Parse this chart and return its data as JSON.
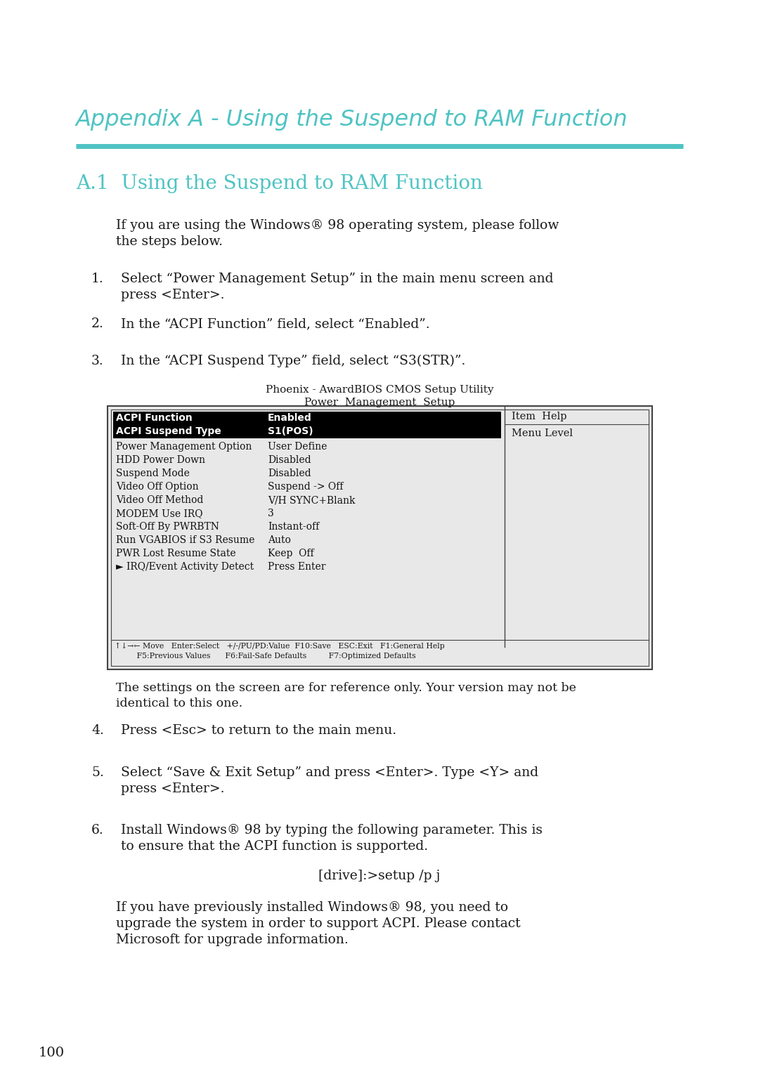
{
  "bg_color": "#ffffff",
  "teal_color": "#4fc3c3",
  "text_color": "#333333",
  "dark_color": "#1a1a1a",
  "appendix_title": "Appendix A - Using the Suspend to RAM Function",
  "section_title": "A.1  Using the Suspend to RAM Function",
  "intro_line1": "If you are using the Windows® 98 operating system, please follow",
  "intro_line2": "the steps below.",
  "step1_num": "1.",
  "step1_line1": "Select “Power Management Setup” in the main menu screen and",
  "step1_line2": "press <Enter>.",
  "step2_num": "2.",
  "step2_text": "In the “ACPI Function” field, select “Enabled”.",
  "step3_num": "3.",
  "step3_text": "In the “ACPI Suspend Type” field, select “S3(STR)”.",
  "bios_title1": "Phoenix - AwardBIOS CMOS Setup Utility",
  "bios_title2": "Power  Management  Setup",
  "bios_hl_row1_left": "ACPI Function",
  "bios_hl_row1_right": "Enabled",
  "bios_hl_row2_left": "ACPI Suspend Type",
  "bios_hl_row2_right": "S1(POS)",
  "bios_rows": [
    [
      "Power Management Option",
      "User Define"
    ],
    [
      "HDD Power Down",
      "Disabled"
    ],
    [
      "Suspend Mode",
      "Disabled"
    ],
    [
      "Video Off Option",
      "Suspend -> Off"
    ],
    [
      "Video Off Method",
      "V/H SYNC+Blank"
    ],
    [
      "MODEM Use IRQ",
      "3"
    ],
    [
      "Soft-Off By PWRBTN",
      "Instant-off"
    ],
    [
      "Run VGABIOS if S3 Resume",
      "Auto"
    ],
    [
      "PWR Lost Resume State",
      "Keep  Off"
    ],
    [
      "► IRQ/Event Activity Detect",
      "Press Enter"
    ]
  ],
  "bios_help_title": "Item  Help",
  "bios_help_text": "Menu Level",
  "bios_footer1": "↑↓→← Move   Enter:Select   +/-/PU/PD:Value  F10:Save   ESC:Exit   F1:General Help",
  "bios_footer2": "         F5:Previous Values      F6:Fail-Safe Defaults         F7:Optimized Defaults",
  "ref_note1": "The settings on the screen are for reference only. Your version may not be",
  "ref_note2": "identical to this one.",
  "step4_num": "4.",
  "step4_text": "Press <Esc> to return to the main menu.",
  "step5_num": "5.",
  "step5_line1": "Select “Save & Exit Setup” and press <Enter>. Type <Y> and",
  "step5_line2": "press <Enter>.",
  "step6_num": "6.",
  "step6_line1": "Install Windows® 98 by typing the following parameter. This is",
  "step6_line2": "to ensure that the ACPI function is supported.",
  "drive_cmd": "[drive]:>setup /p j",
  "final_line1": "If you have previously installed Windows® 98, you need to",
  "final_line2": "upgrade the system in order to support ACPI. Please contact",
  "final_line3": "Microsoft for upgrade information.",
  "page_num": "100"
}
